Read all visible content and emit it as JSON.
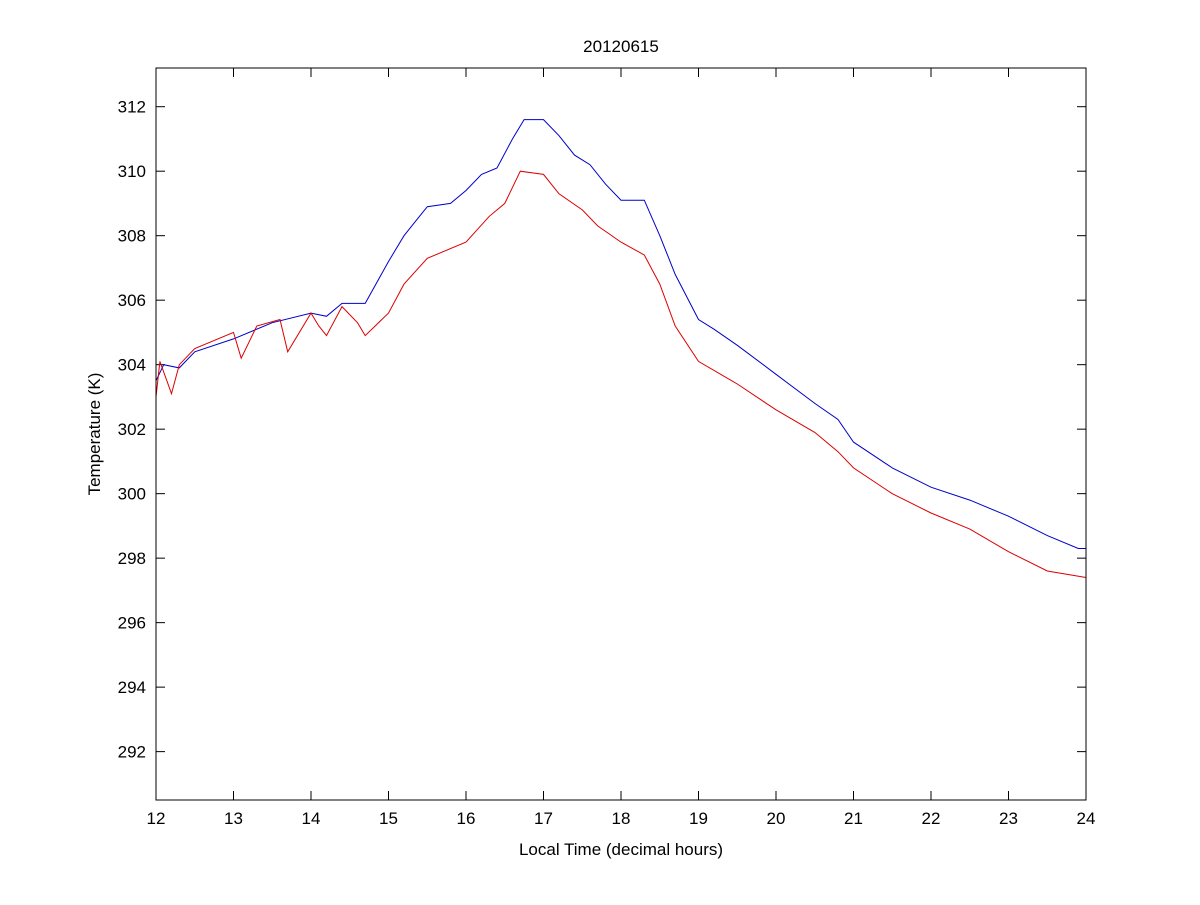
{
  "chart_data": {
    "type": "line",
    "title": "20120615",
    "xlabel": "Local Time (decimal hours)",
    "ylabel": "Temperature (K)",
    "xlim": [
      12,
      24
    ],
    "ylim": [
      290.5,
      313.2
    ],
    "xticks": [
      12,
      13,
      14,
      15,
      16,
      17,
      18,
      19,
      20,
      21,
      22,
      23,
      24
    ],
    "yticks": [
      292,
      294,
      296,
      298,
      300,
      302,
      304,
      306,
      308,
      310,
      312
    ],
    "grid": false,
    "series": [
      {
        "name": "blue series",
        "color": "#0000cc",
        "x": [
          12.0,
          12.1,
          12.3,
          12.5,
          13.0,
          13.5,
          14.0,
          14.2,
          14.4,
          14.7,
          15.0,
          15.2,
          15.4,
          15.5,
          15.8,
          16.0,
          16.2,
          16.4,
          16.6,
          16.75,
          17.0,
          17.2,
          17.4,
          17.6,
          17.8,
          18.0,
          18.3,
          18.5,
          18.7,
          19.0,
          19.2,
          19.5,
          20.0,
          20.5,
          20.8,
          21.0,
          21.5,
          22.0,
          22.5,
          23.0,
          23.5,
          23.9,
          24.0
        ],
        "y": [
          303.5,
          304.0,
          303.9,
          304.4,
          304.8,
          305.3,
          305.6,
          305.5,
          305.9,
          305.9,
          307.2,
          308.0,
          308.6,
          308.9,
          309.0,
          309.4,
          309.9,
          310.1,
          311.0,
          311.6,
          311.6,
          311.1,
          310.5,
          310.2,
          309.6,
          309.1,
          309.1,
          308.0,
          306.8,
          305.4,
          305.1,
          304.6,
          303.7,
          302.8,
          302.3,
          301.6,
          300.8,
          300.2,
          299.8,
          299.3,
          298.7,
          298.3,
          298.3
        ]
      },
      {
        "name": "red series",
        "color": "#dd0000",
        "x": [
          12.0,
          12.05,
          12.2,
          12.3,
          12.5,
          13.0,
          13.1,
          13.3,
          13.6,
          13.7,
          14.0,
          14.1,
          14.2,
          14.4,
          14.6,
          14.7,
          15.0,
          15.2,
          15.5,
          16.0,
          16.3,
          16.5,
          16.7,
          17.0,
          17.2,
          17.5,
          17.7,
          18.0,
          18.3,
          18.5,
          18.7,
          19.0,
          19.5,
          20.0,
          20.5,
          20.8,
          21.0,
          21.5,
          22.0,
          22.5,
          23.0,
          23.5,
          24.0
        ],
        "y": [
          303.0,
          304.1,
          303.1,
          304.0,
          304.5,
          305.0,
          304.2,
          305.2,
          305.4,
          304.4,
          305.6,
          305.2,
          304.9,
          305.8,
          305.3,
          304.9,
          305.6,
          306.5,
          307.3,
          307.8,
          308.6,
          309.0,
          310.0,
          309.9,
          309.3,
          308.8,
          308.3,
          307.8,
          307.4,
          306.5,
          305.2,
          304.1,
          303.4,
          302.6,
          301.9,
          301.3,
          300.8,
          300.0,
          299.4,
          298.9,
          298.2,
          297.6,
          297.4
        ]
      }
    ]
  }
}
